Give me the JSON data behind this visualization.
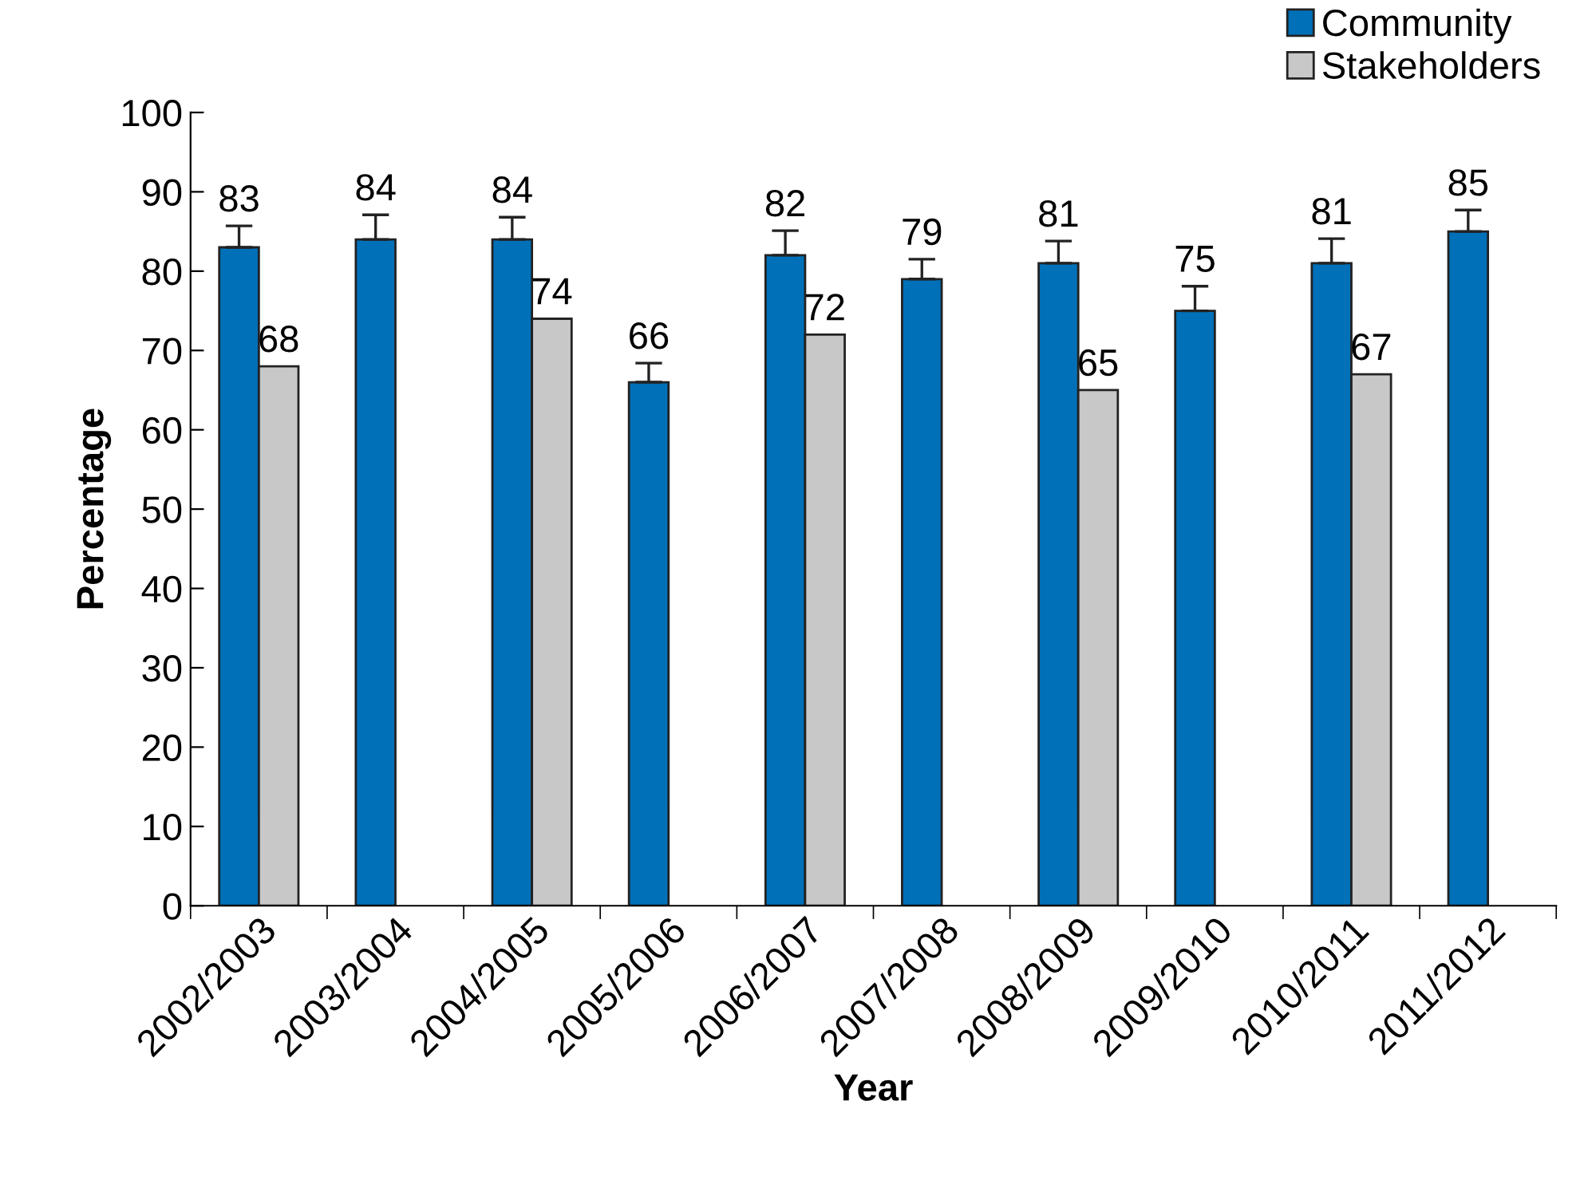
{
  "chart_data": {
    "type": "bar",
    "xlabel": "Year",
    "ylabel": "Percentage",
    "categories": [
      "2002/2003",
      "2003/2004",
      "2004/2005",
      "2005/2006",
      "2006/2007",
      "2007/2008",
      "2008/2009",
      "2009/2010",
      "2010/2011",
      "2011/2012"
    ],
    "series": [
      {
        "name": "Community",
        "color": "#0070b8",
        "values": [
          83,
          84,
          84,
          66,
          82,
          79,
          81,
          75,
          81,
          85
        ],
        "errors": [
          [
            83,
            85.7
          ],
          [
            84,
            87.1
          ],
          [
            84,
            86.8
          ],
          [
            66,
            68.4
          ],
          [
            82,
            85.1
          ],
          [
            79,
            81.5
          ],
          [
            81,
            83.8
          ],
          [
            75,
            78.1
          ],
          [
            81,
            84.1
          ],
          [
            85,
            87.7
          ]
        ]
      },
      {
        "name": "Stakeholders",
        "color": "#c8c8c8",
        "values": [
          68,
          null,
          74,
          null,
          72,
          null,
          65,
          null,
          67,
          null
        ]
      }
    ],
    "ylim": [
      0,
      100
    ],
    "yticks": [
      0,
      10,
      20,
      30,
      40,
      50,
      60,
      70,
      80,
      90,
      100
    ],
    "data_labels": true,
    "grid": false,
    "legend": "top right"
  }
}
